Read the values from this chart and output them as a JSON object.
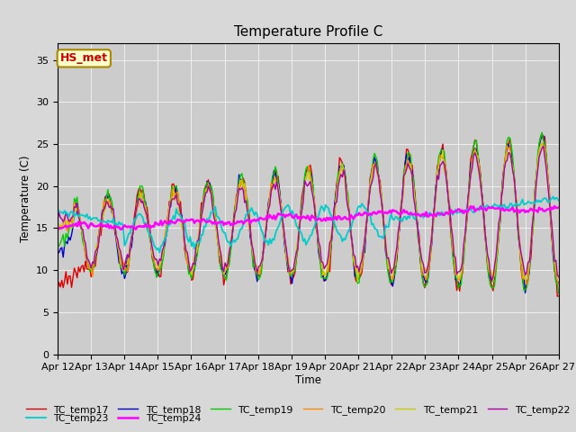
{
  "title": "Temperature Profile C",
  "xlabel": "Time",
  "ylabel": "Temperature (C)",
  "ylim": [
    0,
    37
  ],
  "yticks": [
    0,
    5,
    10,
    15,
    20,
    25,
    30,
    35
  ],
  "annotation_text": "HS_met",
  "series_colors": {
    "TC_temp17": "#dd0000",
    "TC_temp18": "#0000cc",
    "TC_temp19": "#00cc00",
    "TC_temp20": "#ff8800",
    "TC_temp21": "#cccc00",
    "TC_temp22": "#aa00aa",
    "TC_temp23": "#00cccc",
    "TC_temp24": "#ff00ff"
  },
  "fig_bg_color": "#d8d8d8",
  "plot_bg_color": "#cccccc",
  "xtick_labels": [
    "Apr 12",
    "Apr 13",
    "Apr 14",
    "Apr 15",
    "Apr 16",
    "Apr 17",
    "Apr 18",
    "Apr 19",
    "Apr 20",
    "Apr 21",
    "Apr 22",
    "Apr 23",
    "Apr 24",
    "Apr 25",
    "Apr 26",
    "Apr 27"
  ],
  "legend_row1": [
    "TC_temp17",
    "TC_temp18",
    "TC_temp19",
    "TC_temp20",
    "TC_temp21",
    "TC_temp22"
  ],
  "legend_row2": [
    "TC_temp23",
    "TC_temp24"
  ]
}
